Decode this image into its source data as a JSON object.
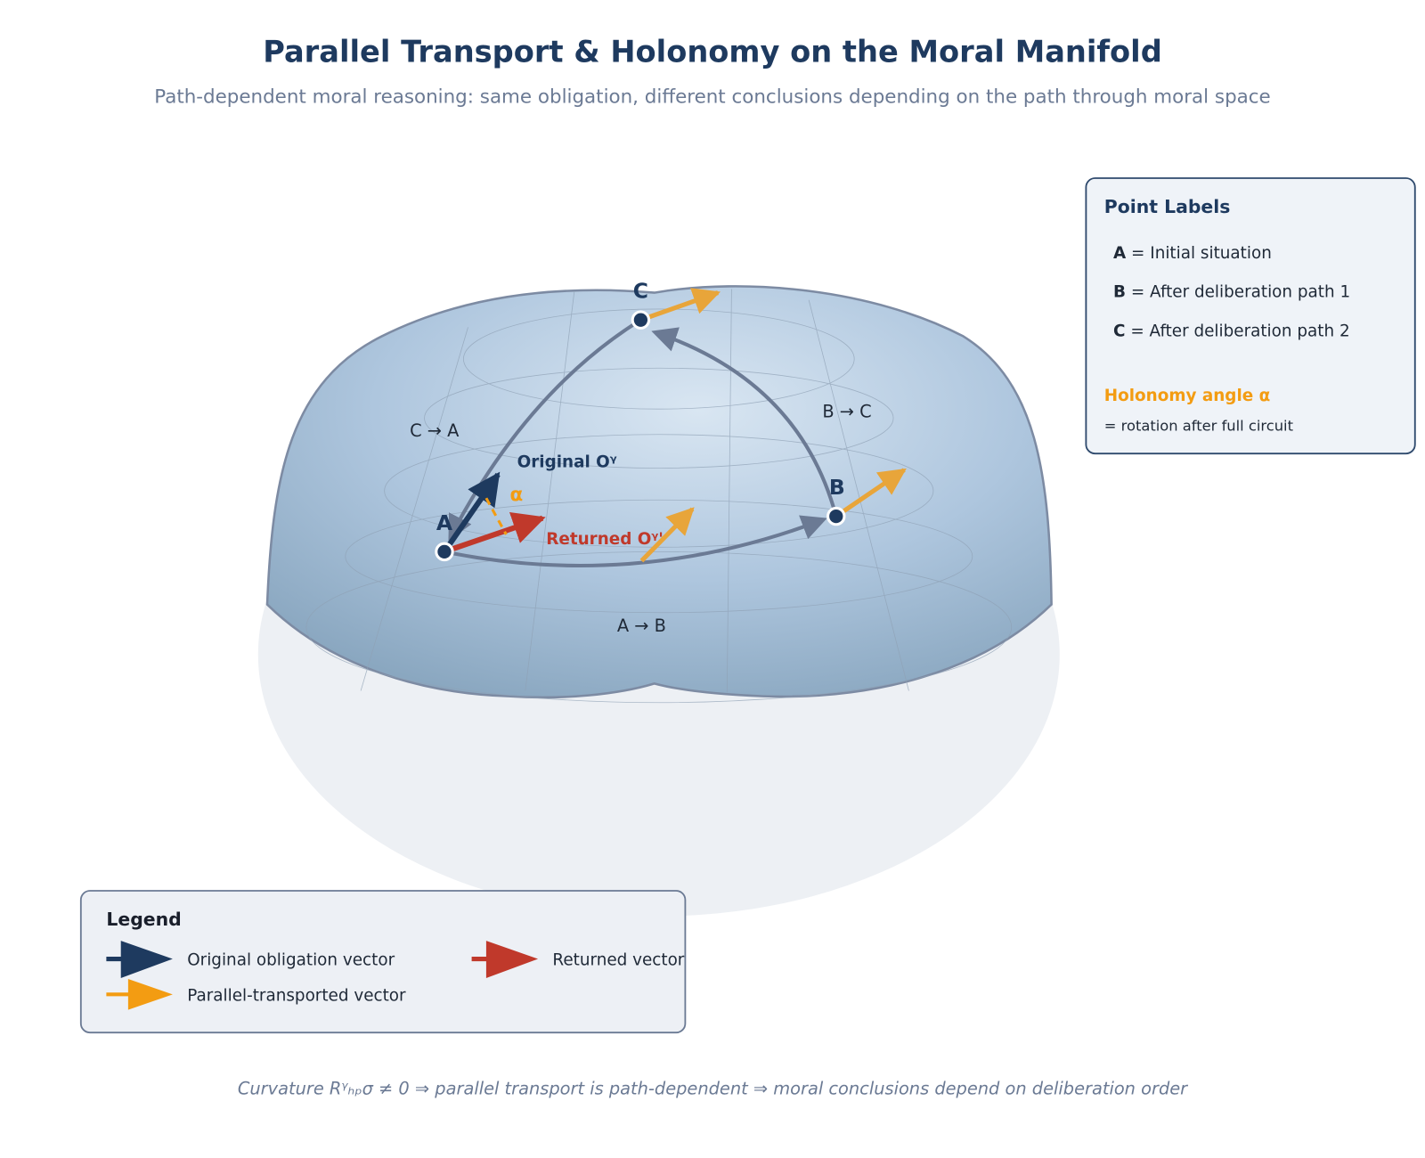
{
  "title": "Parallel Transport & Holonomy on the Moral Manifold",
  "subtitle": "Path-dependent moral reasoning: same obligation, different conclusions depending on the path through moral space",
  "points": {
    "A": "A",
    "B": "B",
    "C": "C"
  },
  "paths": {
    "ab": "A → B",
    "bc": "B → C",
    "ca": "C → A"
  },
  "vector_labels": {
    "original": "Original Oᵞ",
    "returned": "Returned Oᵞ'",
    "alpha": "α"
  },
  "point_labels_box": {
    "title": "Point Labels",
    "items": [
      {
        "key": "A",
        "text": " = Initial situation"
      },
      {
        "key": "B",
        "text": " = After deliberation path 1"
      },
      {
        "key": "C",
        "text": " = After deliberation path 2"
      }
    ],
    "holonomy_title": "Holonomy angle α",
    "holonomy_text": "= rotation after full circuit"
  },
  "legend": {
    "title": "Legend",
    "items": [
      {
        "label": "Original obligation vector",
        "color": "#1e3a5f"
      },
      {
        "label": "Returned vector",
        "color": "#c0392b"
      },
      {
        "label": "Parallel-transported vector",
        "color": "#f39c12"
      }
    ]
  },
  "footer": "Curvature Rᵞₕₚσ ≠ 0 ⇒ parallel transport is path-dependent ⇒ moral conclusions depend on deliberation order",
  "colors": {
    "original": "#1e3a5f",
    "returned": "#c0392b",
    "transported": "#f39c12",
    "path": "#6b7a94"
  }
}
